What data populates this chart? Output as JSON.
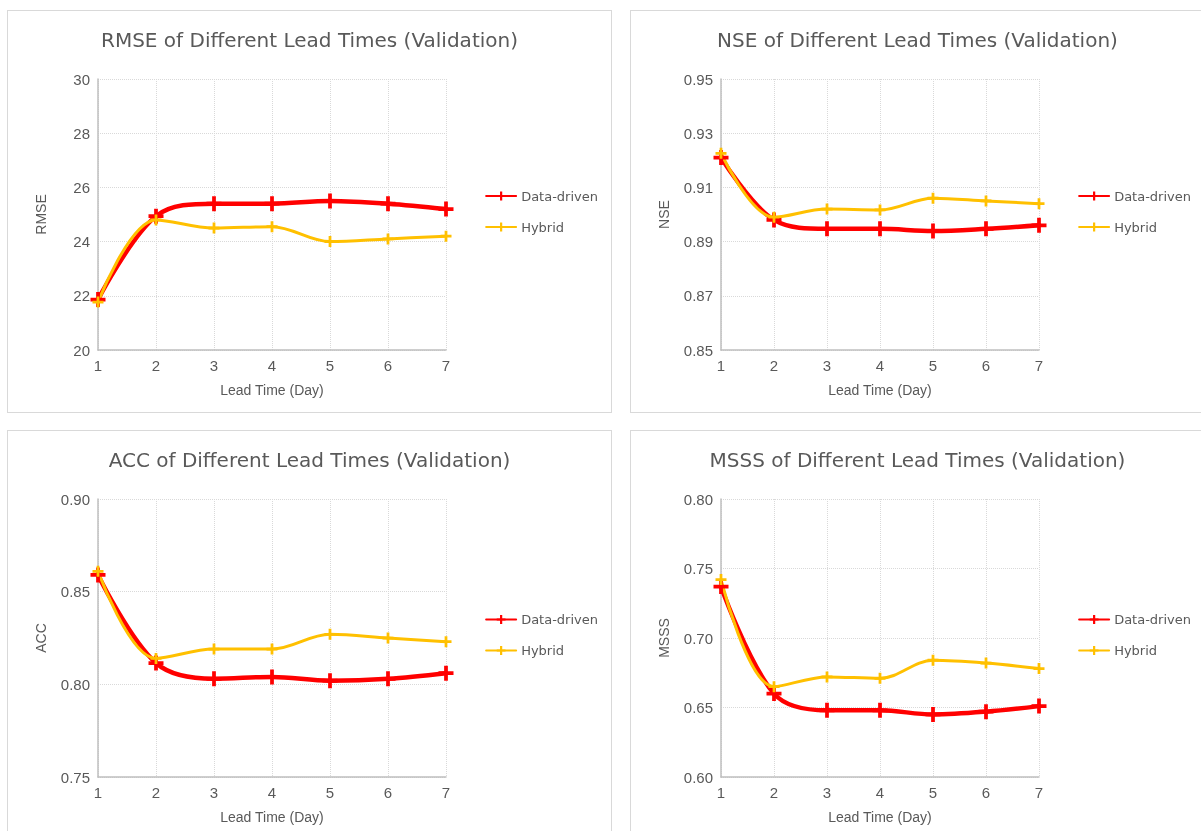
{
  "chart_data": [
    {
      "type": "line",
      "title": "RMSE of Different Lead Times (Validation)",
      "xlabel": "Lead Time (Day)",
      "ylabel": "RMSE",
      "categories": [
        "1",
        "2",
        "3",
        "4",
        "5",
        "6",
        "7"
      ],
      "ylim": [
        20,
        30
      ],
      "yticks": [
        20,
        22,
        24,
        26,
        28,
        30
      ],
      "grid": true,
      "legend": "right",
      "marker": "cross",
      "line_style": "solid",
      "series": [
        {
          "name": "Data-driven",
          "color": "#ff0000",
          "values": [
            21.86,
            24.94,
            25.4,
            25.4,
            25.5,
            25.4,
            25.2
          ]
        },
        {
          "name": "Hybrid",
          "color": "#ffc000",
          "values": [
            21.77,
            24.8,
            24.5,
            24.55,
            24.0,
            24.1,
            24.2
          ]
        }
      ]
    },
    {
      "type": "line",
      "title": "NSE of Different Lead Times (Validation)",
      "xlabel": "Lead Time (Day)",
      "ylabel": "NSE",
      "categories": [
        "1",
        "2",
        "3",
        "4",
        "5",
        "6",
        "7"
      ],
      "ylim": [
        0.85,
        0.95
      ],
      "yticks": [
        0.85,
        0.87,
        0.89,
        0.91,
        0.93,
        0.95
      ],
      "grid": true,
      "legend": "right",
      "marker": "cross",
      "line_style": "solid",
      "series": [
        {
          "name": "Data-driven",
          "color": "#ff0000",
          "values": [
            0.921,
            0.898,
            0.8947,
            0.8947,
            0.8939,
            0.8947,
            0.896
          ]
        },
        {
          "name": "Hybrid",
          "color": "#ffc000",
          "values": [
            0.9226,
            0.899,
            0.902,
            0.9017,
            0.906,
            0.905,
            0.904
          ]
        }
      ]
    },
    {
      "type": "line",
      "title": "ACC of Different Lead Times (Validation)",
      "xlabel": "Lead Time (Day)",
      "ylabel": "ACC",
      "categories": [
        "1",
        "2",
        "3",
        "4",
        "5",
        "6",
        "7"
      ],
      "ylim": [
        0.75,
        0.9
      ],
      "yticks": [
        0.75,
        {
          "value": 0.8,
          "label": "0.80"
        },
        0.85,
        {
          "value": 0.9,
          "label": "0.90"
        }
      ],
      "grid": true,
      "legend": "right",
      "marker": "cross",
      "line_style": "solid",
      "series": [
        {
          "name": "Data-driven",
          "color": "#ff0000",
          "values": [
            0.859,
            0.8115,
            0.803,
            0.804,
            0.802,
            0.803,
            0.806
          ]
        },
        {
          "name": "Hybrid",
          "color": "#ffc000",
          "values": [
            0.861,
            0.814,
            0.819,
            0.819,
            0.827,
            0.825,
            0.823
          ]
        }
      ]
    },
    {
      "type": "line",
      "title": "MSSS of Different Lead Times (Validation)",
      "xlabel": "Lead Time (Day)",
      "ylabel": "MSSS",
      "categories": [
        "1",
        "2",
        "3",
        "4",
        "5",
        "6",
        "7"
      ],
      "ylim": [
        0.6,
        0.8
      ],
      "yticks": [
        {
          "value": 0.6,
          "label": "0.60"
        },
        0.65,
        {
          "value": 0.7,
          "label": "0.70"
        },
        0.75,
        {
          "value": 0.8,
          "label": "0.80"
        }
      ],
      "grid": true,
      "legend": "right",
      "marker": "cross",
      "line_style": "solid",
      "series": [
        {
          "name": "Data-driven",
          "color": "#ff0000",
          "values": [
            0.737,
            0.66,
            0.648,
            0.648,
            0.645,
            0.647,
            0.651
          ]
        },
        {
          "name": "Hybrid",
          "color": "#ffc000",
          "values": [
            0.742,
            0.665,
            0.672,
            0.671,
            0.684,
            0.682,
            0.678
          ]
        }
      ]
    }
  ]
}
